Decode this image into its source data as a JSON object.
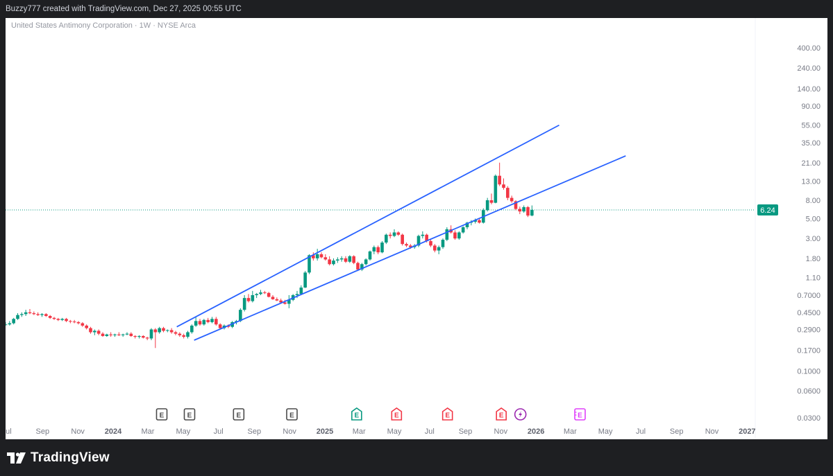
{
  "header": {
    "attribution": "Buzzy777 created with TradingView.com, Dec 27, 2025 00:55 UTC"
  },
  "symbol": {
    "description": "United States Antimony Corporation · 1W · NYSE Arca"
  },
  "brand": {
    "name": "TradingView",
    "logo_icon": "tradingview-logo-icon"
  },
  "chart_data": {
    "type": "candlestick",
    "scale": "log",
    "timeframe": "1W",
    "last_price": 6.24,
    "last_price_label": "6.24",
    "y_axis_labels": [
      "400.00",
      "240.00",
      "140.00",
      "90.00",
      "55.00",
      "35.00",
      "21.00",
      "13.00",
      "8.00",
      "5.00",
      "3.00",
      "1.80",
      "1.10",
      "0.7000",
      "0.4500",
      "0.2900",
      "0.1700",
      "0.1000",
      "0.0600",
      "0.0300"
    ],
    "x_axis_labels": [
      {
        "label": "Jul",
        "t": "2023-07"
      },
      {
        "label": "Sep",
        "t": "2023-09"
      },
      {
        "label": "Nov",
        "t": "2023-11"
      },
      {
        "label": "2024",
        "t": "2024-01",
        "bold": true
      },
      {
        "label": "Mar",
        "t": "2024-03"
      },
      {
        "label": "May",
        "t": "2024-05"
      },
      {
        "label": "Jul",
        "t": "2024-07"
      },
      {
        "label": "Sep",
        "t": "2024-09"
      },
      {
        "label": "Nov",
        "t": "2024-11"
      },
      {
        "label": "2025",
        "t": "2025-01",
        "bold": true
      },
      {
        "label": "Mar",
        "t": "2025-03"
      },
      {
        "label": "May",
        "t": "2025-05"
      },
      {
        "label": "Jul",
        "t": "2025-07"
      },
      {
        "label": "Sep",
        "t": "2025-09"
      },
      {
        "label": "Nov",
        "t": "2025-11"
      },
      {
        "label": "2026",
        "t": "2026-01",
        "bold": true
      },
      {
        "label": "Mar",
        "t": "2026-03"
      },
      {
        "label": "May",
        "t": "2026-05"
      },
      {
        "label": "Jul",
        "t": "2026-07"
      },
      {
        "label": "Sep",
        "t": "2026-09"
      },
      {
        "label": "Nov",
        "t": "2026-11"
      },
      {
        "label": "2027",
        "t": "2027-01",
        "bold": true
      }
    ],
    "colors": {
      "up": "#089981",
      "down": "#f23645",
      "trendline": "#2962ff",
      "price_line": "#089981"
    },
    "trendlines": [
      {
        "name": "upper-channel",
        "from": {
          "t": "2024-04-20",
          "v": 0.31
        },
        "to": {
          "t": "2026-02-10",
          "v": 55
        }
      },
      {
        "name": "lower-channel",
        "from": {
          "t": "2024-05-20",
          "v": 0.22
        },
        "to": {
          "t": "2026-06-05",
          "v": 25
        }
      }
    ],
    "candles": [
      {
        "t": "2023-06-22",
        "o": 0.33,
        "h": 0.34,
        "l": 0.32,
        "c": 0.325
      },
      {
        "t": "2023-06-29",
        "o": 0.325,
        "h": 0.35,
        "l": 0.32,
        "c": 0.33
      },
      {
        "t": "2023-07-06",
        "o": 0.33,
        "h": 0.36,
        "l": 0.32,
        "c": 0.34
      },
      {
        "t": "2023-07-13",
        "o": 0.34,
        "h": 0.39,
        "l": 0.33,
        "c": 0.38
      },
      {
        "t": "2023-07-20",
        "o": 0.38,
        "h": 0.44,
        "l": 0.37,
        "c": 0.42
      },
      {
        "t": "2023-07-27",
        "o": 0.42,
        "h": 0.45,
        "l": 0.4,
        "c": 0.43
      },
      {
        "t": "2023-08-03",
        "o": 0.43,
        "h": 0.48,
        "l": 0.41,
        "c": 0.45
      },
      {
        "t": "2023-08-10",
        "o": 0.45,
        "h": 0.49,
        "l": 0.43,
        "c": 0.44
      },
      {
        "t": "2023-08-17",
        "o": 0.44,
        "h": 0.46,
        "l": 0.42,
        "c": 0.43
      },
      {
        "t": "2023-08-24",
        "o": 0.43,
        "h": 0.45,
        "l": 0.41,
        "c": 0.42
      },
      {
        "t": "2023-08-31",
        "o": 0.42,
        "h": 0.44,
        "l": 0.4,
        "c": 0.43
      },
      {
        "t": "2023-09-07",
        "o": 0.43,
        "h": 0.44,
        "l": 0.4,
        "c": 0.41
      },
      {
        "t": "2023-09-14",
        "o": 0.41,
        "h": 0.42,
        "l": 0.38,
        "c": 0.39
      },
      {
        "t": "2023-09-21",
        "o": 0.39,
        "h": 0.4,
        "l": 0.37,
        "c": 0.38
      },
      {
        "t": "2023-09-28",
        "o": 0.38,
        "h": 0.39,
        "l": 0.36,
        "c": 0.37
      },
      {
        "t": "2023-10-05",
        "o": 0.37,
        "h": 0.39,
        "l": 0.36,
        "c": 0.38
      },
      {
        "t": "2023-10-12",
        "o": 0.38,
        "h": 0.39,
        "l": 0.35,
        "c": 0.36
      },
      {
        "t": "2023-10-19",
        "o": 0.36,
        "h": 0.37,
        "l": 0.34,
        "c": 0.355
      },
      {
        "t": "2023-10-26",
        "o": 0.355,
        "h": 0.37,
        "l": 0.34,
        "c": 0.35
      },
      {
        "t": "2023-11-02",
        "o": 0.35,
        "h": 0.36,
        "l": 0.33,
        "c": 0.34
      },
      {
        "t": "2023-11-09",
        "o": 0.34,
        "h": 0.35,
        "l": 0.31,
        "c": 0.32
      },
      {
        "t": "2023-11-16",
        "o": 0.32,
        "h": 0.33,
        "l": 0.29,
        "c": 0.3
      },
      {
        "t": "2023-11-23",
        "o": 0.3,
        "h": 0.31,
        "l": 0.26,
        "c": 0.27
      },
      {
        "t": "2023-11-30",
        "o": 0.27,
        "h": 0.29,
        "l": 0.25,
        "c": 0.28
      },
      {
        "t": "2023-12-07",
        "o": 0.28,
        "h": 0.29,
        "l": 0.25,
        "c": 0.26
      },
      {
        "t": "2023-12-14",
        "o": 0.26,
        "h": 0.27,
        "l": 0.24,
        "c": 0.245
      },
      {
        "t": "2023-12-21",
        "o": 0.245,
        "h": 0.26,
        "l": 0.24,
        "c": 0.255
      },
      {
        "t": "2023-12-28",
        "o": 0.255,
        "h": 0.27,
        "l": 0.24,
        "c": 0.25
      },
      {
        "t": "2024-01-04",
        "o": 0.25,
        "h": 0.26,
        "l": 0.24,
        "c": 0.255
      },
      {
        "t": "2024-01-11",
        "o": 0.255,
        "h": 0.27,
        "l": 0.245,
        "c": 0.25
      },
      {
        "t": "2024-01-18",
        "o": 0.25,
        "h": 0.26,
        "l": 0.24,
        "c": 0.255
      },
      {
        "t": "2024-01-25",
        "o": 0.255,
        "h": 0.27,
        "l": 0.25,
        "c": 0.26
      },
      {
        "t": "2024-02-01",
        "o": 0.26,
        "h": 0.27,
        "l": 0.24,
        "c": 0.245
      },
      {
        "t": "2024-02-08",
        "o": 0.245,
        "h": 0.25,
        "l": 0.23,
        "c": 0.24
      },
      {
        "t": "2024-02-15",
        "o": 0.24,
        "h": 0.25,
        "l": 0.23,
        "c": 0.245
      },
      {
        "t": "2024-02-22",
        "o": 0.245,
        "h": 0.25,
        "l": 0.23,
        "c": 0.235
      },
      {
        "t": "2024-02-29",
        "o": 0.235,
        "h": 0.24,
        "l": 0.22,
        "c": 0.23
      },
      {
        "t": "2024-03-07",
        "o": 0.23,
        "h": 0.3,
        "l": 0.22,
        "c": 0.29
      },
      {
        "t": "2024-03-14",
        "o": 0.29,
        "h": 0.3,
        "l": 0.18,
        "c": 0.27
      },
      {
        "t": "2024-03-21",
        "o": 0.27,
        "h": 0.31,
        "l": 0.26,
        "c": 0.3
      },
      {
        "t": "2024-03-28",
        "o": 0.3,
        "h": 0.31,
        "l": 0.27,
        "c": 0.28
      },
      {
        "t": "2024-04-04",
        "o": 0.28,
        "h": 0.29,
        "l": 0.27,
        "c": 0.285
      },
      {
        "t": "2024-04-11",
        "o": 0.285,
        "h": 0.3,
        "l": 0.26,
        "c": 0.27
      },
      {
        "t": "2024-04-18",
        "o": 0.27,
        "h": 0.28,
        "l": 0.25,
        "c": 0.26
      },
      {
        "t": "2024-04-25",
        "o": 0.26,
        "h": 0.27,
        "l": 0.24,
        "c": 0.25
      },
      {
        "t": "2024-05-02",
        "o": 0.25,
        "h": 0.26,
        "l": 0.23,
        "c": 0.24
      },
      {
        "t": "2024-05-09",
        "o": 0.24,
        "h": 0.28,
        "l": 0.23,
        "c": 0.27
      },
      {
        "t": "2024-05-16",
        "o": 0.27,
        "h": 0.33,
        "l": 0.26,
        "c": 0.32
      },
      {
        "t": "2024-05-23",
        "o": 0.32,
        "h": 0.4,
        "l": 0.31,
        "c": 0.36
      },
      {
        "t": "2024-05-30",
        "o": 0.36,
        "h": 0.38,
        "l": 0.32,
        "c": 0.33
      },
      {
        "t": "2024-06-06",
        "o": 0.33,
        "h": 0.38,
        "l": 0.32,
        "c": 0.37
      },
      {
        "t": "2024-06-13",
        "o": 0.37,
        "h": 0.39,
        "l": 0.34,
        "c": 0.35
      },
      {
        "t": "2024-06-20",
        "o": 0.35,
        "h": 0.4,
        "l": 0.34,
        "c": 0.38
      },
      {
        "t": "2024-06-27",
        "o": 0.38,
        "h": 0.4,
        "l": 0.32,
        "c": 0.33
      },
      {
        "t": "2024-07-04",
        "o": 0.33,
        "h": 0.34,
        "l": 0.29,
        "c": 0.3
      },
      {
        "t": "2024-07-11",
        "o": 0.3,
        "h": 0.33,
        "l": 0.29,
        "c": 0.32
      },
      {
        "t": "2024-07-18",
        "o": 0.32,
        "h": 0.33,
        "l": 0.3,
        "c": 0.31
      },
      {
        "t": "2024-07-25",
        "o": 0.31,
        "h": 0.36,
        "l": 0.3,
        "c": 0.35
      },
      {
        "t": "2024-08-01",
        "o": 0.35,
        "h": 0.37,
        "l": 0.33,
        "c": 0.36
      },
      {
        "t": "2024-08-08",
        "o": 0.36,
        "h": 0.5,
        "l": 0.35,
        "c": 0.48
      },
      {
        "t": "2024-08-15",
        "o": 0.48,
        "h": 0.7,
        "l": 0.46,
        "c": 0.65
      },
      {
        "t": "2024-08-22",
        "o": 0.65,
        "h": 0.72,
        "l": 0.58,
        "c": 0.6
      },
      {
        "t": "2024-08-29",
        "o": 0.6,
        "h": 0.78,
        "l": 0.58,
        "c": 0.7
      },
      {
        "t": "2024-09-05",
        "o": 0.7,
        "h": 0.74,
        "l": 0.65,
        "c": 0.72
      },
      {
        "t": "2024-09-12",
        "o": 0.72,
        "h": 0.8,
        "l": 0.7,
        "c": 0.75
      },
      {
        "t": "2024-09-19",
        "o": 0.75,
        "h": 0.78,
        "l": 0.72,
        "c": 0.74
      },
      {
        "t": "2024-09-26",
        "o": 0.74,
        "h": 0.76,
        "l": 0.66,
        "c": 0.67
      },
      {
        "t": "2024-10-03",
        "o": 0.67,
        "h": 0.7,
        "l": 0.62,
        "c": 0.63
      },
      {
        "t": "2024-10-10",
        "o": 0.63,
        "h": 0.66,
        "l": 0.6,
        "c": 0.61
      },
      {
        "t": "2024-10-17",
        "o": 0.61,
        "h": 0.64,
        "l": 0.57,
        "c": 0.58
      },
      {
        "t": "2024-10-24",
        "o": 0.58,
        "h": 0.62,
        "l": 0.55,
        "c": 0.56
      },
      {
        "t": "2024-10-31",
        "o": 0.56,
        "h": 0.7,
        "l": 0.5,
        "c": 0.62
      },
      {
        "t": "2024-11-07",
        "o": 0.62,
        "h": 0.72,
        "l": 0.6,
        "c": 0.7
      },
      {
        "t": "2024-11-14",
        "o": 0.7,
        "h": 0.78,
        "l": 0.65,
        "c": 0.72
      },
      {
        "t": "2024-11-21",
        "o": 0.72,
        "h": 0.9,
        "l": 0.7,
        "c": 0.85
      },
      {
        "t": "2024-11-28",
        "o": 0.85,
        "h": 1.3,
        "l": 0.84,
        "c": 1.25
      },
      {
        "t": "2024-12-05",
        "o": 1.25,
        "h": 2.0,
        "l": 1.2,
        "c": 1.95
      },
      {
        "t": "2024-12-12",
        "o": 1.95,
        "h": 2.1,
        "l": 1.7,
        "c": 1.8
      },
      {
        "t": "2024-12-19",
        "o": 1.8,
        "h": 2.3,
        "l": 1.7,
        "c": 2.0
      },
      {
        "t": "2024-12-26",
        "o": 2.0,
        "h": 2.1,
        "l": 1.8,
        "c": 1.85
      },
      {
        "t": "2025-01-02",
        "o": 1.85,
        "h": 2.0,
        "l": 1.7,
        "c": 1.75
      },
      {
        "t": "2025-01-09",
        "o": 1.75,
        "h": 1.9,
        "l": 1.5,
        "c": 1.55
      },
      {
        "t": "2025-01-16",
        "o": 1.55,
        "h": 1.8,
        "l": 1.5,
        "c": 1.7
      },
      {
        "t": "2025-01-23",
        "o": 1.7,
        "h": 1.85,
        "l": 1.6,
        "c": 1.75
      },
      {
        "t": "2025-01-30",
        "o": 1.75,
        "h": 1.9,
        "l": 1.65,
        "c": 1.8
      },
      {
        "t": "2025-02-06",
        "o": 1.8,
        "h": 1.9,
        "l": 1.6,
        "c": 1.65
      },
      {
        "t": "2025-02-13",
        "o": 1.65,
        "h": 1.95,
        "l": 1.6,
        "c": 1.9
      },
      {
        "t": "2025-02-20",
        "o": 1.9,
        "h": 1.95,
        "l": 1.55,
        "c": 1.6
      },
      {
        "t": "2025-02-27",
        "o": 1.6,
        "h": 1.65,
        "l": 1.3,
        "c": 1.35
      },
      {
        "t": "2025-03-06",
        "o": 1.35,
        "h": 1.6,
        "l": 1.3,
        "c": 1.55
      },
      {
        "t": "2025-03-13",
        "o": 1.55,
        "h": 1.8,
        "l": 1.5,
        "c": 1.75
      },
      {
        "t": "2025-03-20",
        "o": 1.75,
        "h": 2.2,
        "l": 1.7,
        "c": 2.15
      },
      {
        "t": "2025-03-27",
        "o": 2.15,
        "h": 2.5,
        "l": 2.0,
        "c": 2.4
      },
      {
        "t": "2025-04-03",
        "o": 2.4,
        "h": 2.5,
        "l": 2.0,
        "c": 2.1
      },
      {
        "t": "2025-04-10",
        "o": 2.1,
        "h": 2.8,
        "l": 2.05,
        "c": 2.7
      },
      {
        "t": "2025-04-17",
        "o": 2.7,
        "h": 3.4,
        "l": 2.6,
        "c": 3.3
      },
      {
        "t": "2025-04-24",
        "o": 3.3,
        "h": 3.5,
        "l": 3.0,
        "c": 3.2
      },
      {
        "t": "2025-05-01",
        "o": 3.2,
        "h": 3.8,
        "l": 3.1,
        "c": 3.5
      },
      {
        "t": "2025-05-08",
        "o": 3.5,
        "h": 3.6,
        "l": 3.2,
        "c": 3.3
      },
      {
        "t": "2025-05-15",
        "o": 3.3,
        "h": 3.4,
        "l": 2.5,
        "c": 2.6
      },
      {
        "t": "2025-05-22",
        "o": 2.6,
        "h": 2.7,
        "l": 2.4,
        "c": 2.5
      },
      {
        "t": "2025-05-29",
        "o": 2.5,
        "h": 2.6,
        "l": 2.3,
        "c": 2.4
      },
      {
        "t": "2025-06-05",
        "o": 2.4,
        "h": 2.6,
        "l": 2.3,
        "c": 2.5
      },
      {
        "t": "2025-06-12",
        "o": 2.5,
        "h": 3.3,
        "l": 2.4,
        "c": 3.2
      },
      {
        "t": "2025-06-19",
        "o": 3.2,
        "h": 3.6,
        "l": 3.0,
        "c": 3.3
      },
      {
        "t": "2025-06-26",
        "o": 3.3,
        "h": 3.4,
        "l": 2.7,
        "c": 2.8
      },
      {
        "t": "2025-07-03",
        "o": 2.8,
        "h": 2.9,
        "l": 2.4,
        "c": 2.5
      },
      {
        "t": "2025-07-10",
        "o": 2.5,
        "h": 2.6,
        "l": 2.1,
        "c": 2.2
      },
      {
        "t": "2025-07-17",
        "o": 2.2,
        "h": 2.5,
        "l": 2.0,
        "c": 2.4
      },
      {
        "t": "2025-07-24",
        "o": 2.4,
        "h": 3.0,
        "l": 2.3,
        "c": 2.9
      },
      {
        "t": "2025-07-31",
        "o": 2.9,
        "h": 4.0,
        "l": 2.8,
        "c": 3.8
      },
      {
        "t": "2025-08-07",
        "o": 3.8,
        "h": 4.2,
        "l": 3.4,
        "c": 3.5
      },
      {
        "t": "2025-08-14",
        "o": 3.5,
        "h": 3.7,
        "l": 2.9,
        "c": 3.0
      },
      {
        "t": "2025-08-21",
        "o": 3.0,
        "h": 3.6,
        "l": 2.9,
        "c": 3.5
      },
      {
        "t": "2025-08-28",
        "o": 3.5,
        "h": 4.1,
        "l": 3.4,
        "c": 4.0
      },
      {
        "t": "2025-09-04",
        "o": 4.0,
        "h": 4.6,
        "l": 3.8,
        "c": 4.5
      },
      {
        "t": "2025-09-11",
        "o": 4.5,
        "h": 4.8,
        "l": 4.2,
        "c": 4.6
      },
      {
        "t": "2025-09-18",
        "o": 4.6,
        "h": 5.0,
        "l": 4.4,
        "c": 4.8
      },
      {
        "t": "2025-09-25",
        "o": 4.8,
        "h": 5.0,
        "l": 4.4,
        "c": 4.5
      },
      {
        "t": "2025-10-02",
        "o": 4.5,
        "h": 6.5,
        "l": 4.4,
        "c": 6.2
      },
      {
        "t": "2025-10-09",
        "o": 6.2,
        "h": 8.5,
        "l": 6.0,
        "c": 8.0
      },
      {
        "t": "2025-10-16",
        "o": 8.0,
        "h": 9.5,
        "l": 7.2,
        "c": 7.5
      },
      {
        "t": "2025-10-23",
        "o": 7.5,
        "h": 15.5,
        "l": 7.4,
        "c": 15.0
      },
      {
        "t": "2025-10-30",
        "o": 15.0,
        "h": 21.0,
        "l": 11.5,
        "c": 12.0
      },
      {
        "t": "2025-11-06",
        "o": 12.0,
        "h": 14.0,
        "l": 10.5,
        "c": 11.0
      },
      {
        "t": "2025-11-13",
        "o": 11.0,
        "h": 11.5,
        "l": 8.0,
        "c": 8.5
      },
      {
        "t": "2025-11-20",
        "o": 8.5,
        "h": 9.0,
        "l": 7.5,
        "c": 7.8
      },
      {
        "t": "2025-11-27",
        "o": 7.8,
        "h": 8.0,
        "l": 6.2,
        "c": 6.4
      },
      {
        "t": "2025-12-04",
        "o": 6.4,
        "h": 6.8,
        "l": 5.6,
        "c": 6.0
      },
      {
        "t": "2025-12-11",
        "o": 6.0,
        "h": 7.0,
        "l": 5.8,
        "c": 6.7
      },
      {
        "t": "2025-12-18",
        "o": 6.7,
        "h": 6.9,
        "l": 5.2,
        "c": 5.4
      },
      {
        "t": "2025-12-25",
        "o": 5.4,
        "h": 7.0,
        "l": 5.3,
        "c": 6.24
      }
    ],
    "events": [
      {
        "t": "2024-03-25",
        "label": "E",
        "kind": "past"
      },
      {
        "t": "2024-05-12",
        "label": "E",
        "kind": "past"
      },
      {
        "t": "2024-08-05",
        "label": "E",
        "kind": "past"
      },
      {
        "t": "2024-11-05",
        "label": "E",
        "kind": "past"
      },
      {
        "t": "2025-02-25",
        "label": "E",
        "kind": "beat"
      },
      {
        "t": "2025-05-05",
        "label": "E",
        "kind": "miss"
      },
      {
        "t": "2025-08-01",
        "label": "E",
        "kind": "miss"
      },
      {
        "t": "2025-11-02",
        "label": "E",
        "kind": "miss"
      },
      {
        "t": "2025-12-05",
        "label": "⚡",
        "kind": "dividend"
      },
      {
        "t": "2026-03-18",
        "label": "E",
        "kind": "upcoming"
      }
    ]
  }
}
